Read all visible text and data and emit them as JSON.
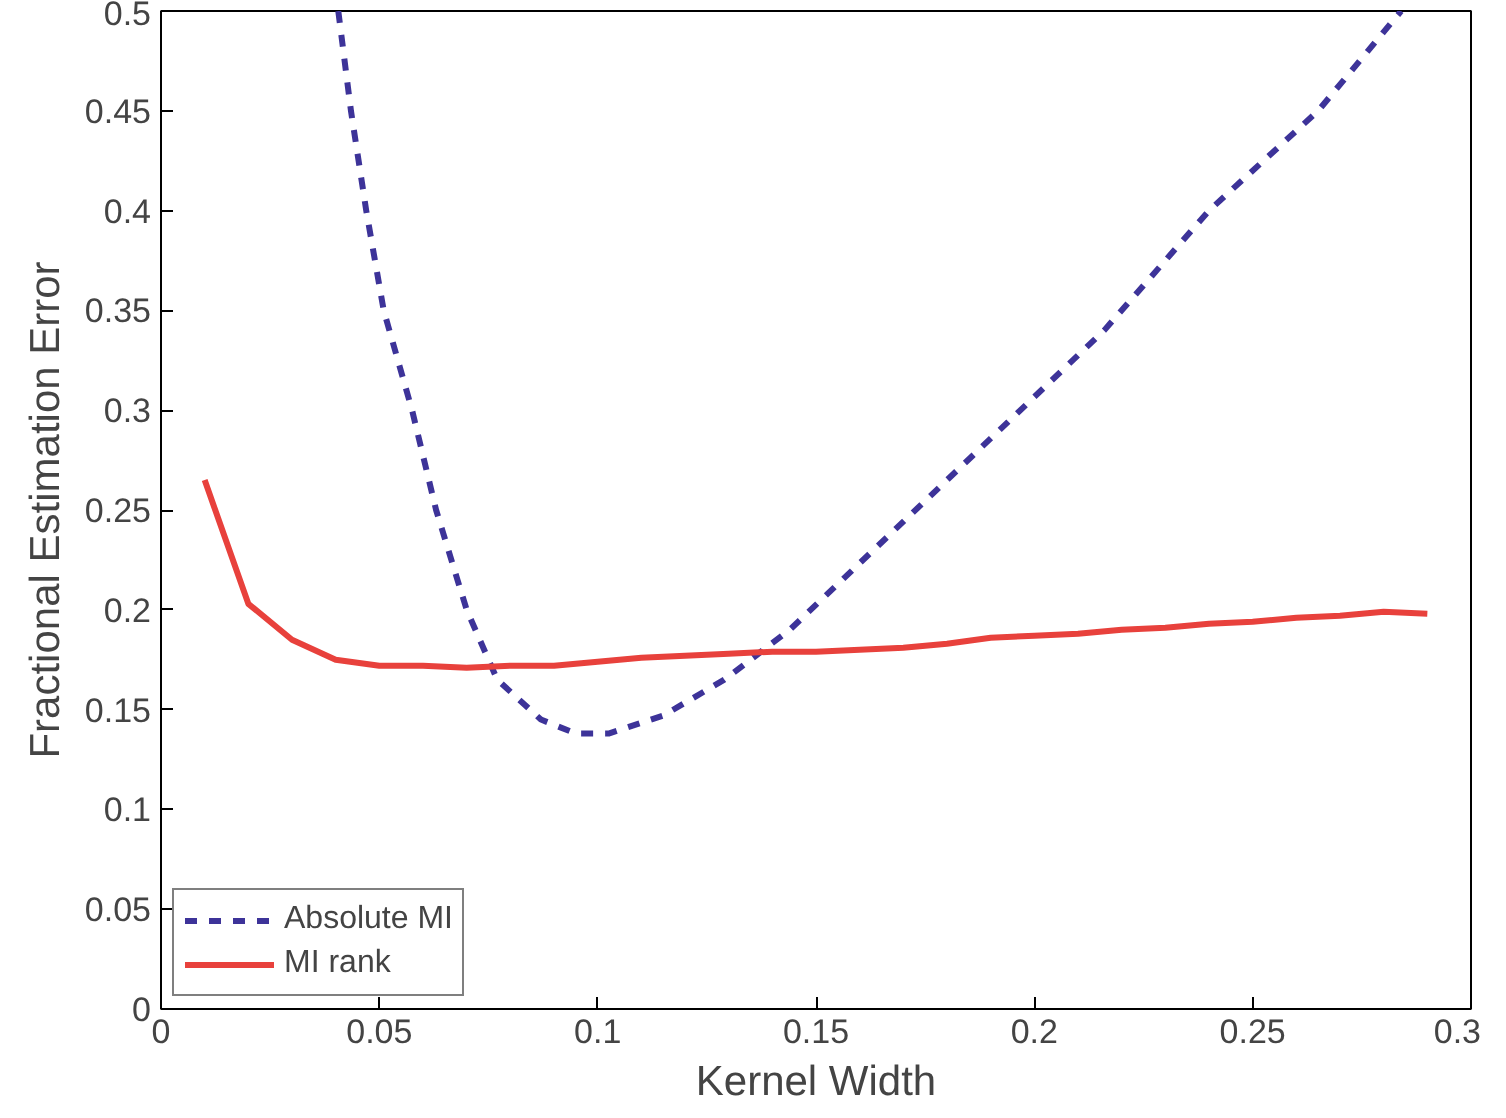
{
  "chart_data": {
    "type": "line",
    "xlabel": "Kernel Width",
    "ylabel": "Fractional Estimation Error",
    "xlim": [
      0,
      0.3
    ],
    "ylim": [
      0,
      0.5
    ],
    "xticks": [
      0,
      0.05,
      0.1,
      0.15,
      0.2,
      0.25,
      0.3
    ],
    "yticks": [
      0,
      0.05,
      0.1,
      0.15,
      0.2,
      0.25,
      0.3,
      0.35,
      0.4,
      0.45,
      0.5
    ],
    "grid": false,
    "legend": "bottom left",
    "marker": "none",
    "series": [
      {
        "name": "Absolute MI",
        "color": "#3d3399",
        "line_style": "dashed",
        "x": [
          0.0406,
          0.0435,
          0.047,
          0.051,
          0.0575,
          0.063,
          0.07,
          0.077,
          0.087,
          0.095,
          0.1025,
          0.115,
          0.129,
          0.144,
          0.168,
          0.192,
          0.216,
          0.24,
          0.265,
          0.284
        ],
        "values": [
          0.5,
          0.45,
          0.4,
          0.35,
          0.3,
          0.25,
          0.2,
          0.165,
          0.145,
          0.138,
          0.138,
          0.147,
          0.165,
          0.19,
          0.24,
          0.29,
          0.34,
          0.4,
          0.45,
          0.5
        ]
      },
      {
        "name": "MI rank",
        "color": "#e8413c",
        "line_style": "solid",
        "x": [
          0.01,
          0.02,
          0.03,
          0.04,
          0.05,
          0.06,
          0.07,
          0.08,
          0.09,
          0.1,
          0.11,
          0.12,
          0.13,
          0.14,
          0.15,
          0.16,
          0.17,
          0.18,
          0.19,
          0.2,
          0.21,
          0.22,
          0.23,
          0.24,
          0.25,
          0.26,
          0.27,
          0.28,
          0.29
        ],
        "values": [
          0.265,
          0.203,
          0.185,
          0.175,
          0.172,
          0.172,
          0.171,
          0.172,
          0.172,
          0.174,
          0.176,
          0.177,
          0.178,
          0.179,
          0.179,
          0.18,
          0.181,
          0.183,
          0.186,
          0.187,
          0.188,
          0.19,
          0.191,
          0.193,
          0.194,
          0.196,
          0.197,
          0.199,
          0.198
        ]
      }
    ]
  }
}
